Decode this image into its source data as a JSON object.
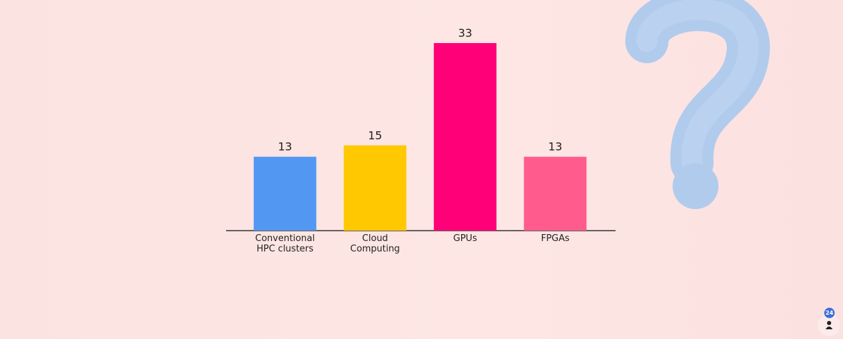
{
  "chart_data": {
    "type": "bar",
    "categories": [
      "Conventional\nHPC clusters",
      "Cloud\nComputing",
      "GPUs",
      "FPGAs"
    ],
    "values": [
      13,
      15,
      33,
      13
    ],
    "colors": [
      "#5297f2",
      "#ffc800",
      "#ff0078",
      "#ff5c8d"
    ]
  },
  "participants": 24
}
